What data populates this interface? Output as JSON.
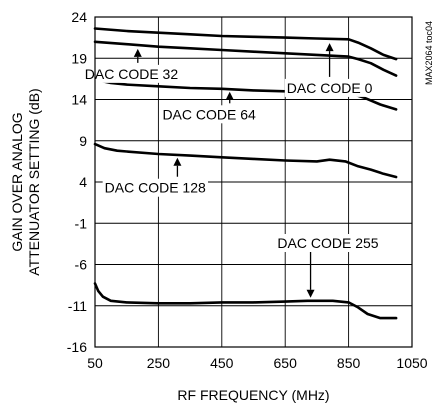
{
  "chart_data": {
    "type": "line",
    "title": "",
    "xlabel": "RF FREQUENCY (MHz)",
    "ylabel_lines": [
      "GAIN OVER ANALOG",
      "ATTENUATOR SETTING (dB)"
    ],
    "xlim": [
      50,
      1050
    ],
    "ylim": [
      -16,
      24
    ],
    "x_ticks": [
      50,
      250,
      450,
      650,
      850,
      1050
    ],
    "y_ticks": [
      24,
      19,
      14,
      9,
      4,
      -1,
      -6,
      -11,
      -16
    ],
    "grid": true,
    "side_label": "MAX2064 toc04",
    "series": [
      {
        "name": "DAC CODE 0",
        "points": [
          [
            50,
            22.6
          ],
          [
            150,
            22.3
          ],
          [
            250,
            22.1
          ],
          [
            350,
            21.9
          ],
          [
            450,
            21.7
          ],
          [
            550,
            21.6
          ],
          [
            650,
            21.5
          ],
          [
            750,
            21.4
          ],
          [
            850,
            21.3
          ],
          [
            880,
            20.9
          ],
          [
            920,
            20.2
          ],
          [
            960,
            19.4
          ],
          [
            1000,
            18.9
          ]
        ]
      },
      {
        "name": "DAC CODE 32",
        "points": [
          [
            50,
            21.0
          ],
          [
            150,
            20.7
          ],
          [
            250,
            20.4
          ],
          [
            350,
            20.2
          ],
          [
            450,
            20.0
          ],
          [
            550,
            19.8
          ],
          [
            650,
            19.6
          ],
          [
            750,
            19.4
          ],
          [
            850,
            19.2
          ],
          [
            880,
            18.9
          ],
          [
            920,
            18.4
          ],
          [
            960,
            17.6
          ],
          [
            1000,
            16.9
          ]
        ]
      },
      {
        "name": "DAC CODE 64",
        "points": [
          [
            50,
            16.4
          ],
          [
            100,
            16.0
          ],
          [
            150,
            15.8
          ],
          [
            250,
            15.6
          ],
          [
            350,
            15.4
          ],
          [
            450,
            15.3
          ],
          [
            550,
            15.1
          ],
          [
            650,
            15.0
          ],
          [
            750,
            14.9
          ],
          [
            850,
            14.8
          ],
          [
            900,
            14.2
          ],
          [
            950,
            13.4
          ],
          [
            1000,
            12.8
          ]
        ]
      },
      {
        "name": "DAC CODE 128",
        "points": [
          [
            50,
            8.6
          ],
          [
            80,
            8.1
          ],
          [
            120,
            7.8
          ],
          [
            150,
            7.7
          ],
          [
            250,
            7.4
          ],
          [
            350,
            7.2
          ],
          [
            450,
            7.0
          ],
          [
            550,
            6.8
          ],
          [
            650,
            6.6
          ],
          [
            750,
            6.5
          ],
          [
            790,
            6.7
          ],
          [
            840,
            6.5
          ],
          [
            880,
            5.9
          ],
          [
            920,
            5.5
          ],
          [
            960,
            5.0
          ],
          [
            1000,
            4.6
          ]
        ]
      },
      {
        "name": "DAC CODE 255",
        "points": [
          [
            50,
            -8.3
          ],
          [
            60,
            -9.2
          ],
          [
            75,
            -9.9
          ],
          [
            100,
            -10.4
          ],
          [
            150,
            -10.6
          ],
          [
            250,
            -10.7
          ],
          [
            350,
            -10.7
          ],
          [
            450,
            -10.6
          ],
          [
            550,
            -10.6
          ],
          [
            650,
            -10.5
          ],
          [
            720,
            -10.4
          ],
          [
            800,
            -10.4
          ],
          [
            850,
            -10.6
          ],
          [
            880,
            -11.2
          ],
          [
            910,
            -12.0
          ],
          [
            950,
            -12.5
          ],
          [
            1000,
            -12.5
          ]
        ]
      }
    ],
    "annotations": [
      {
        "text": "DAC CODE 32",
        "label_at": [
          165,
          16.5
        ],
        "arrow_to": [
          185,
          20.5
        ]
      },
      {
        "text": "DAC CODE 64",
        "label_at": [
          410,
          11.6
        ],
        "arrow_to": [
          475,
          15.3
        ]
      },
      {
        "text": "DAC CODE 0",
        "label_at": [
          790,
          14.8
        ],
        "arrow_to": [
          790,
          21.2
        ]
      },
      {
        "text": "DAC CODE 128",
        "label_at": [
          240,
          2.7
        ],
        "arrow_to": [
          310,
          7.3
        ]
      },
      {
        "text": "DAC CODE 255",
        "label_at": [
          785,
          -4.0
        ],
        "arrow_to": [
          730,
          -10.4
        ]
      }
    ]
  }
}
